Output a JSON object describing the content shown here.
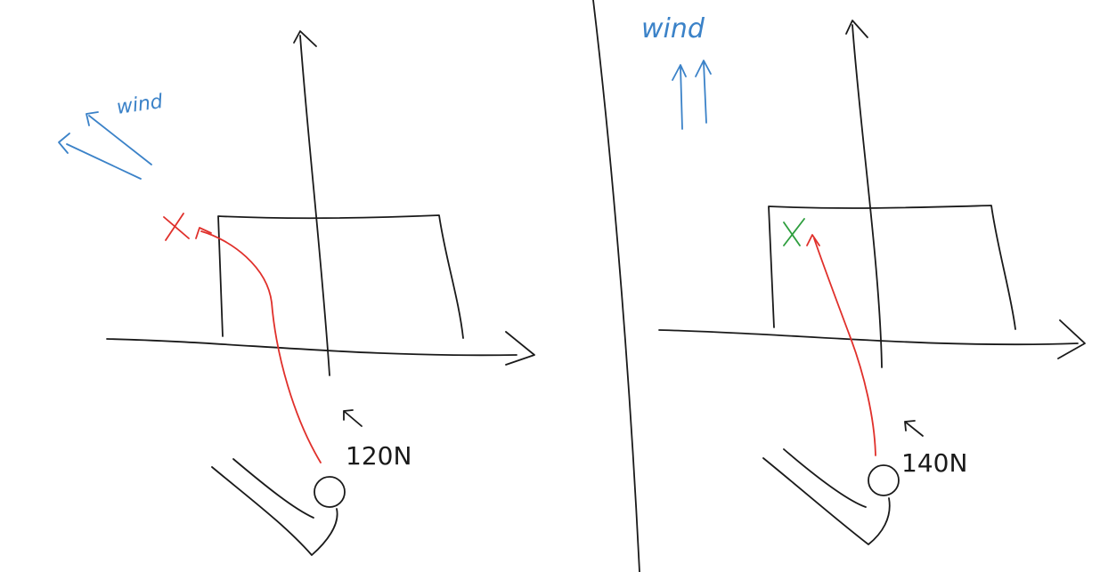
{
  "panels": [
    {
      "wind_label": "wind",
      "force_label": "120N",
      "outcome": "miss",
      "outcome_color": "#e0302b"
    },
    {
      "wind_label": "wind",
      "force_label": "140N",
      "outcome": "hit",
      "outcome_color": "#2e9e3e"
    }
  ],
  "colors": {
    "ink": "#1a1a1a",
    "wind": "#3b82c8",
    "trajectory": "#e0302b",
    "hit_marker": "#2e9e3e"
  }
}
